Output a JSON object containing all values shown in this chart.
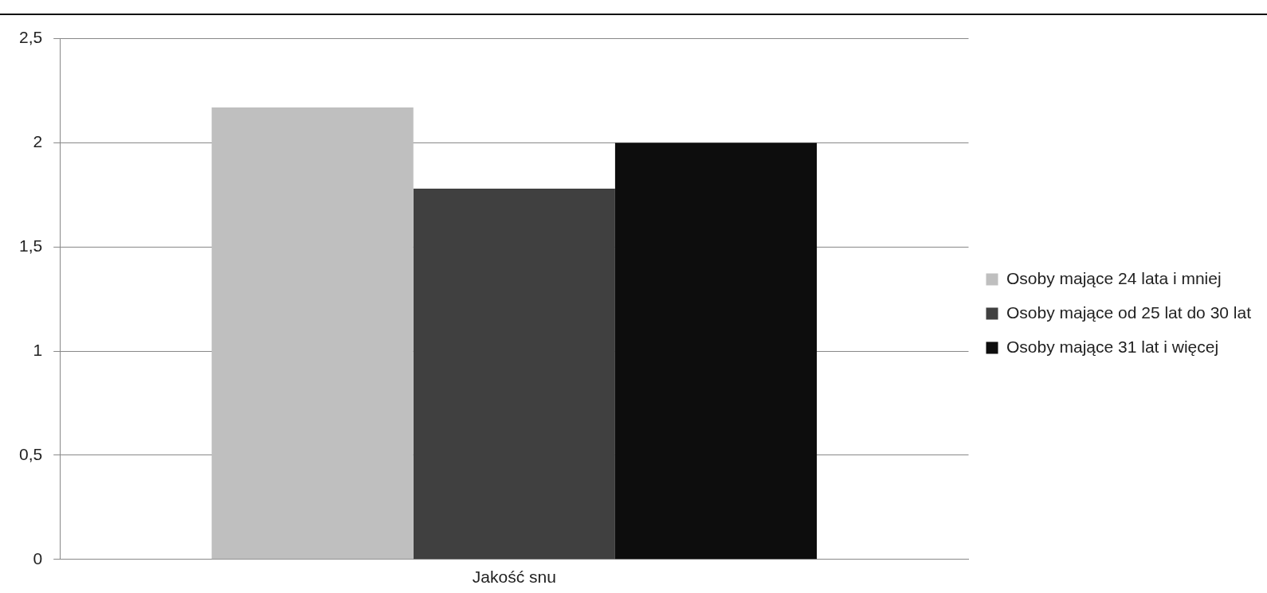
{
  "chart_data": {
    "type": "bar",
    "categories": [
      "Jakość snu"
    ],
    "series": [
      {
        "name": "Osoby mające 24 lata i mniej",
        "color": "#bfbfbf",
        "values": [
          2.17
        ]
      },
      {
        "name": "Osoby mające od 25 lat do 30 lat",
        "color": "#404040",
        "values": [
          1.78
        ]
      },
      {
        "name": "Osoby mające 31 lat i więcej",
        "color": "#0d0d0d",
        "values": [
          2.0
        ]
      }
    ],
    "ylim": [
      0,
      2.5
    ],
    "yticks": [
      {
        "value": 0,
        "label": "0"
      },
      {
        "value": 0.5,
        "label": "0,5"
      },
      {
        "value": 1,
        "label": "1"
      },
      {
        "value": 1.5,
        "label": "1,5"
      },
      {
        "value": 2,
        "label": "2"
      },
      {
        "value": 2.5,
        "label": "2,5"
      }
    ],
    "grid": "y",
    "legend": "right"
  }
}
